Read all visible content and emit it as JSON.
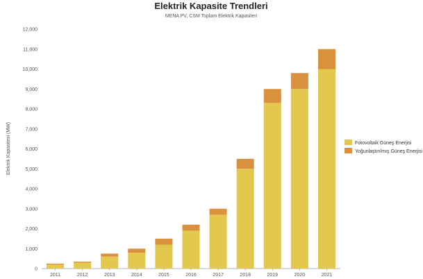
{
  "chart_data": {
    "type": "bar",
    "stacked": true,
    "title": "Elektrik Kapasite Trendleri",
    "subtitle": "MENA PV, CSM Toplam Elektrik Kapasiteri",
    "xlabel": "",
    "ylabel": "Elektrik Kapasitesi (MW)",
    "categories": [
      "2011",
      "2012",
      "2013",
      "2014",
      "2015",
      "2016",
      "2017",
      "2018",
      "2019",
      "2020",
      "2021"
    ],
    "ylim": [
      0,
      12000
    ],
    "yticks": [
      0,
      1000,
      2000,
      3000,
      4000,
      5000,
      6000,
      7000,
      8000,
      9000,
      10000,
      11000,
      12000
    ],
    "ytick_labels": [
      "0",
      "1,000",
      "2,000",
      "3,000",
      "4,000",
      "5,000",
      "6,000",
      "7,000",
      "8,000",
      "9,000",
      "10,000",
      "11,000",
      "12,000"
    ],
    "grid": false,
    "legend_position": "right",
    "series": [
      {
        "name": "Fotovoltaik Güneş Enerjisi",
        "color": "#e2c84f",
        "values": [
          200,
          300,
          600,
          800,
          1200,
          1900,
          2700,
          5000,
          8300,
          9000,
          10000
        ]
      },
      {
        "name": "Yoğunlaştırılmış Güneş Enerjisi",
        "color": "#d9913e",
        "values": [
          50,
          50,
          150,
          200,
          300,
          300,
          300,
          500,
          700,
          800,
          1000
        ]
      }
    ]
  }
}
